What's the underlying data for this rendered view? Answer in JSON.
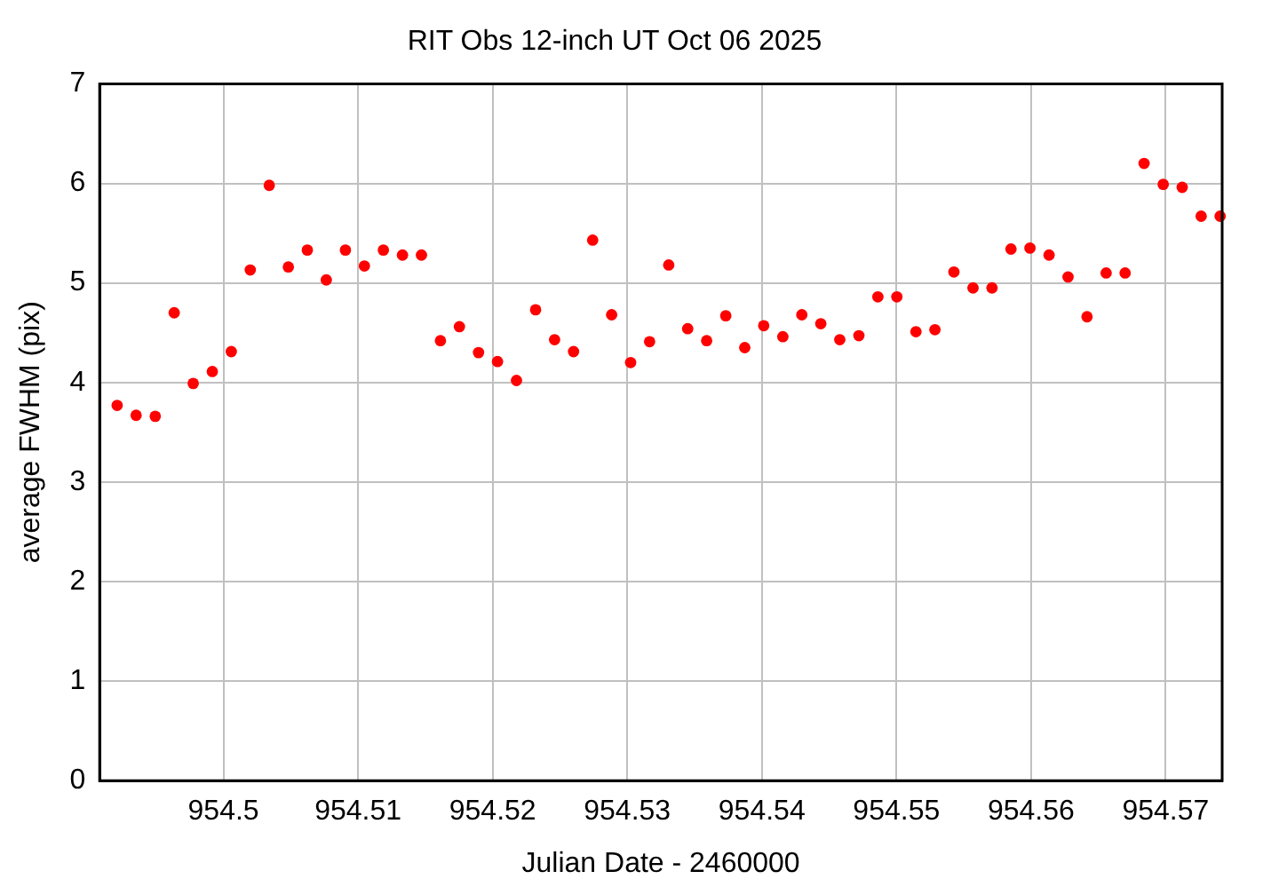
{
  "chart_data": {
    "type": "scatter",
    "title": "RIT Obs 12-inch UT Oct 06 2025",
    "xlabel": "Julian Date - 2460000",
    "ylabel": "average FWHM (pix)",
    "x": [
      954.4921,
      954.49351,
      954.49493,
      954.49634,
      954.49775,
      954.49917,
      954.50058,
      954.50199,
      954.5034,
      954.50482,
      954.50623,
      954.50764,
      954.50906,
      954.51047,
      954.51188,
      954.5133,
      954.51471,
      954.51612,
      954.51753,
      954.51895,
      954.52036,
      954.52177,
      954.52319,
      954.5246,
      954.52601,
      954.52743,
      954.52884,
      954.53025,
      954.53166,
      954.53308,
      954.53449,
      954.5359,
      954.53732,
      954.53873,
      954.54014,
      954.54156,
      954.54297,
      954.54438,
      954.54579,
      954.54721,
      954.54862,
      954.55003,
      954.55145,
      954.55286,
      954.55427,
      954.55569,
      954.5571,
      954.55851,
      954.55992,
      954.56134,
      954.56275,
      954.56416,
      954.56558,
      954.56699,
      954.5684,
      954.56982,
      954.57123,
      954.57264,
      954.57405
    ],
    "series": [
      {
        "color": "#ff0000",
        "values": [
          3.77,
          3.67,
          3.66,
          4.7,
          3.99,
          4.11,
          4.31,
          5.13,
          5.98,
          5.16,
          5.33,
          5.03,
          5.33,
          5.17,
          5.33,
          5.28,
          5.28,
          4.42,
          4.56,
          4.3,
          4.21,
          4.02,
          4.73,
          4.43,
          4.31,
          5.43,
          4.68,
          4.2,
          4.41,
          5.18,
          4.54,
          4.42,
          4.67,
          4.35,
          4.57,
          4.46,
          4.68,
          4.59,
          4.43,
          4.47,
          4.86,
          4.86,
          4.51,
          4.53,
          5.11,
          4.95,
          4.95,
          5.34,
          5.35,
          5.28,
          5.06,
          4.66,
          5.1,
          5.1,
          6.2,
          5.99,
          5.96,
          5.67,
          5.67
        ]
      }
    ],
    "xlim": [
      954.4908,
      954.5742
    ],
    "xticks": [
      954.5,
      954.51,
      954.52,
      954.53,
      954.54,
      954.55,
      954.56,
      954.57
    ],
    "ylim": [
      0,
      7
    ],
    "yticks": [
      0,
      1,
      2,
      3,
      4,
      5,
      6,
      7
    ],
    "grid": true,
    "legend": false,
    "marker": "circle"
  }
}
